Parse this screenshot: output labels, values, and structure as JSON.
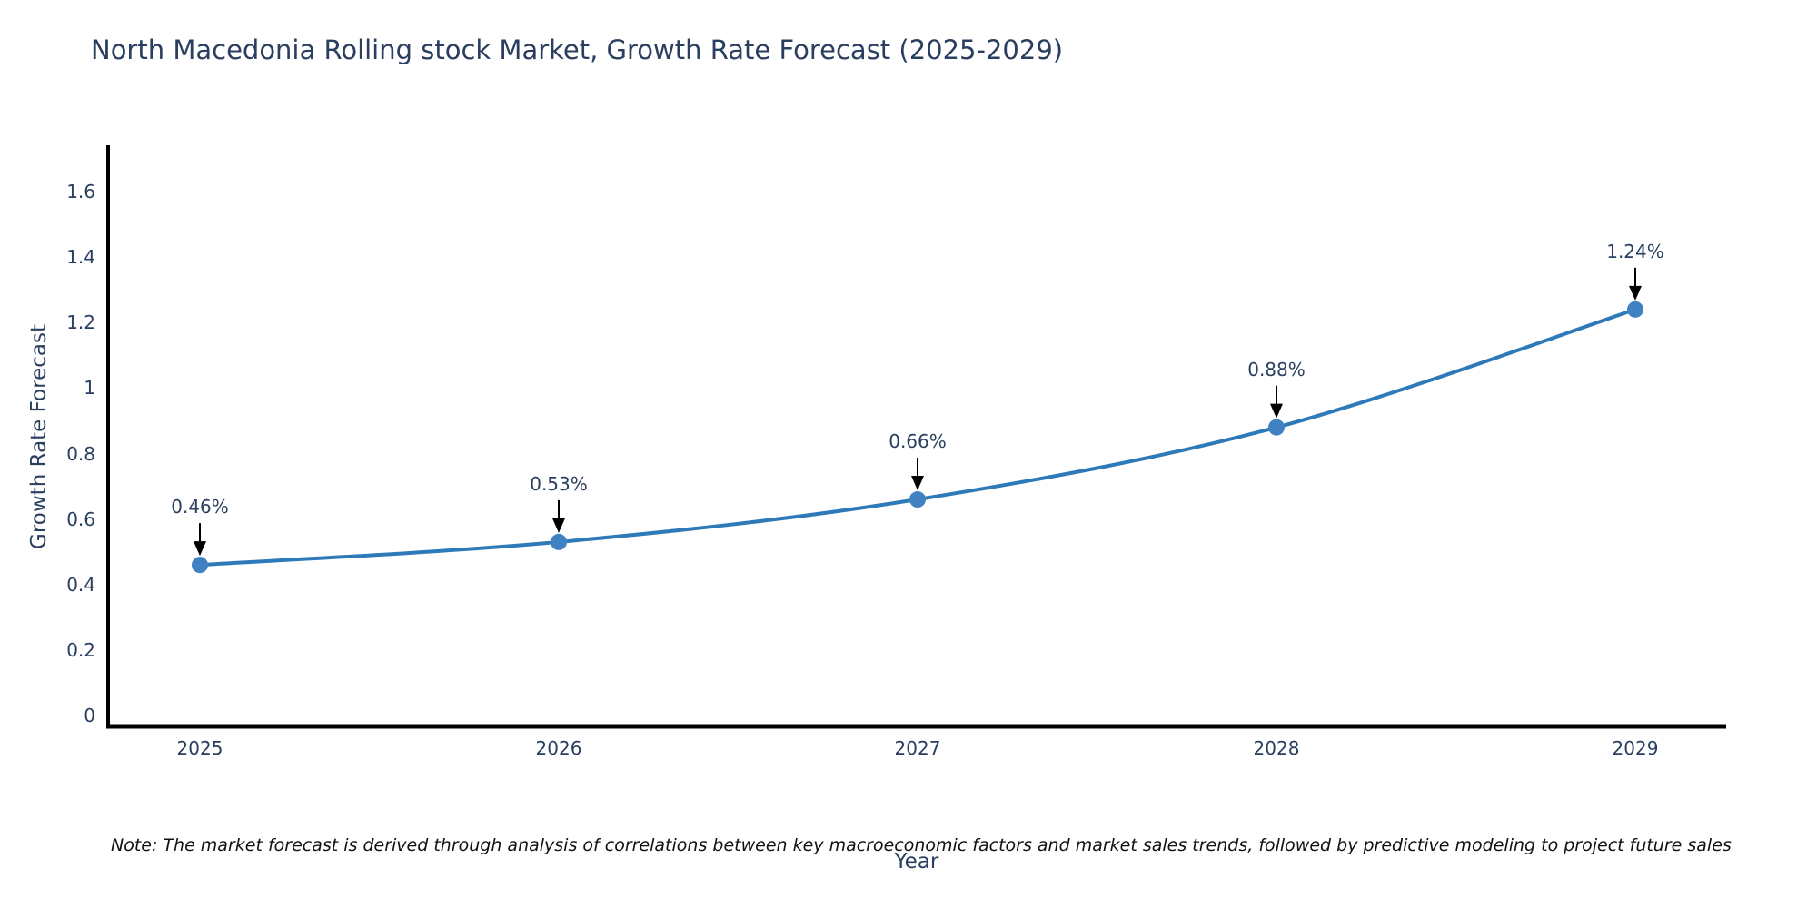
{
  "title": "North Macedonia Rolling stock Market, Growth Rate Forecast (2025-2029)",
  "note": "Note: The market forecast is derived through analysis of correlations between key macroeconomic factors and market sales trends, followed by predictive modeling to project future sales",
  "chart_data": {
    "type": "line",
    "title": "North Macedonia Rolling stock Market, Growth Rate Forecast (2025-2029)",
    "xlabel": "Year",
    "ylabel": "Growth Rate Forecast",
    "categories": [
      "2025",
      "2026",
      "2027",
      "2028",
      "2029"
    ],
    "series": [
      {
        "name": "Growth Rate Forecast",
        "values": [
          0.46,
          0.53,
          0.66,
          0.88,
          1.24
        ],
        "point_labels": [
          "0.46%",
          "0.53%",
          "0.66%",
          "0.88%",
          "1.24%"
        ]
      }
    ],
    "yticks": [
      0,
      0.2,
      0.4,
      0.6,
      0.8,
      1,
      1.2,
      1.4,
      1.6
    ],
    "ylim": [
      0,
      1.74
    ],
    "grid": false,
    "legend_position": "none",
    "line_shape": "spline",
    "annotations_have_arrows": true,
    "colors": {
      "line": "#2e79b8",
      "marker": "#3f81c1",
      "axis": "#000000",
      "arrow": "#000000",
      "label_text": "#2a3f5f",
      "note_text": "#111111"
    }
  }
}
